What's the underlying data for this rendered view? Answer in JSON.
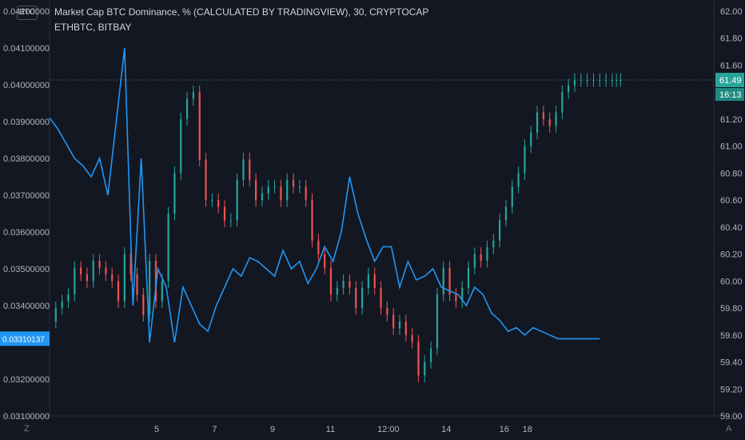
{
  "header": {
    "symbol_badge": "BTC",
    "title": "Market Cap BTC Dominance, % (CALCULATED BY TRADINGVIEW), 30, CRYPTOCAP",
    "overlay": "ETHBTC, BITBAY"
  },
  "corners": {
    "bottom_left": "Z",
    "bottom_right": "A"
  },
  "colors": {
    "background": "#131722",
    "up": "#26a69a",
    "down": "#ef5350",
    "ethbtc_line": "#2196f3",
    "axis_text": "#b2b5be",
    "badge_text": "#ffffff"
  },
  "chart_data": {
    "type": "line",
    "main_series": "Market Cap BTC Dominance, % (CALCULATED BY TRADINGVIEW), 30, CRYPTOCAP",
    "overlay_series": "ETHBTC, BITBAY",
    "x_ticks": [
      "5",
      "7",
      "9",
      "11",
      "12:00",
      "14",
      "16",
      "18"
    ],
    "left_axis_ticks": [
      "0.04200000",
      "0.04100000",
      "0.04000000",
      "0.03900000",
      "0.03800000",
      "0.03700000",
      "0.03600000",
      "0.03500000",
      "0.03400000",
      "0.03200000",
      "0.03100000"
    ],
    "right_axis_ticks": [
      "62.00",
      "61.80",
      "61.60",
      "61.20",
      "61.00",
      "60.80",
      "60.60",
      "60.40",
      "60.20",
      "60.00",
      "59.80",
      "59.60",
      "59.40",
      "59.20",
      "59.00"
    ],
    "right_ylim": [
      59.0,
      62.0
    ],
    "left_ylim": [
      0.031,
      0.042
    ],
    "last_btcd": "61.49",
    "countdown": "16:13",
    "last_ethbtc": "0.03310137",
    "btc_dominance": {
      "x": [
        0,
        0.15,
        0.3,
        0.45,
        0.6,
        0.75,
        0.9,
        1.05,
        1.2,
        1.35,
        1.5,
        1.65,
        1.8,
        1.95,
        2.1,
        2.25,
        2.4,
        2.55,
        2.7,
        2.85,
        3.0,
        3.15,
        3.3,
        3.45,
        3.6,
        3.75,
        3.9,
        4.05,
        4.2,
        4.35,
        4.5,
        4.65,
        4.8,
        4.95,
        5.1,
        5.25,
        5.4,
        5.55,
        5.7,
        5.85,
        6.0,
        6.15,
        6.3,
        6.45,
        6.6,
        6.75,
        6.9,
        7.05,
        7.2,
        7.35,
        7.5,
        7.65,
        7.8,
        7.95,
        8.1,
        8.25,
        8.4,
        8.55,
        8.7,
        8.85,
        9.0,
        9.15,
        9.3,
        9.45,
        9.6,
        9.75,
        9.9,
        10.05,
        10.2,
        10.35,
        10.5,
        10.65,
        10.8,
        10.95,
        11.1,
        11.25,
        11.4,
        11.55,
        11.7,
        11.85,
        12.0,
        12.15,
        12.3,
        12.45,
        12.6,
        12.75,
        12.9,
        13.05,
        13.2,
        13.35,
        13.5,
        13.6,
        13.7
      ],
      "y": [
        59.7,
        59.8,
        59.85,
        59.9,
        60.1,
        60.05,
        60.0,
        60.15,
        60.1,
        60.05,
        60.0,
        59.85,
        60.2,
        60.05,
        59.9,
        59.75,
        60.15,
        59.85,
        60.0,
        60.5,
        60.8,
        61.2,
        61.35,
        61.4,
        60.9,
        60.6,
        60.6,
        60.55,
        60.45,
        60.45,
        60.75,
        60.9,
        60.75,
        60.6,
        60.65,
        60.7,
        60.7,
        60.6,
        60.75,
        60.7,
        60.7,
        60.6,
        60.3,
        60.2,
        60.1,
        59.9,
        59.95,
        60.0,
        59.95,
        59.8,
        59.95,
        60.05,
        59.95,
        59.8,
        59.75,
        59.65,
        59.7,
        59.6,
        59.55,
        59.3,
        59.4,
        59.5,
        59.9,
        60.1,
        59.9,
        59.85,
        59.95,
        60.1,
        60.2,
        60.15,
        60.25,
        60.3,
        60.45,
        60.55,
        60.7,
        60.8,
        61.0,
        61.1,
        61.25,
        61.2,
        61.15,
        61.25,
        61.4,
        61.45,
        61.49,
        61.49,
        61.49,
        61.49,
        61.49,
        61.49,
        61.49,
        61.49,
        61.49
      ]
    },
    "ethbtc": {
      "x": [
        0,
        0.2,
        0.4,
        0.6,
        0.8,
        1.0,
        1.2,
        1.4,
        1.6,
        1.8,
        2.0,
        2.2,
        2.4,
        2.6,
        2.8,
        3.0,
        3.2,
        3.4,
        3.6,
        3.8,
        4.0,
        4.2,
        4.4,
        4.6,
        4.8,
        5.0,
        5.2,
        5.4,
        5.6,
        5.8,
        6.0,
        6.2,
        6.4,
        6.6,
        6.8,
        7.0,
        7.2,
        7.4,
        7.6,
        7.8,
        8.0,
        8.2,
        8.4,
        8.6,
        8.8,
        9.0,
        9.2,
        9.4,
        9.6,
        9.8,
        10.0,
        10.2,
        10.4,
        10.6,
        10.8,
        11.0,
        11.2,
        11.4,
        11.6,
        11.8,
        12.0,
        12.2,
        12.4,
        12.6,
        12.8,
        13.0,
        13.2
      ],
      "y": [
        0.0391,
        0.0388,
        0.0384,
        0.038,
        0.0378,
        0.0375,
        0.038,
        0.037,
        0.039,
        0.041,
        0.034,
        0.038,
        0.033,
        0.035,
        0.0345,
        0.033,
        0.0345,
        0.034,
        0.0335,
        0.0333,
        0.034,
        0.0345,
        0.035,
        0.0348,
        0.0353,
        0.0352,
        0.035,
        0.0348,
        0.0355,
        0.035,
        0.0352,
        0.0346,
        0.035,
        0.0356,
        0.0352,
        0.036,
        0.0375,
        0.0365,
        0.0358,
        0.0352,
        0.0356,
        0.0356,
        0.0345,
        0.0352,
        0.0347,
        0.0348,
        0.035,
        0.0345,
        0.0344,
        0.0343,
        0.034,
        0.0345,
        0.0343,
        0.0338,
        0.0336,
        0.0333,
        0.0334,
        0.0332,
        0.0334,
        0.0333,
        0.0332,
        0.0331,
        0.0331,
        0.0331,
        0.0331,
        0.0331,
        0.0331
      ]
    }
  }
}
